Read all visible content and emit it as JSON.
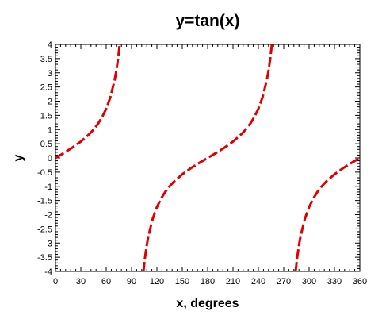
{
  "chart_data": {
    "type": "line",
    "title": "y=tan(x)",
    "xlabel": "x, degrees",
    "ylabel": "y",
    "xlim": [
      0,
      360
    ],
    "ylim": [
      -4,
      4
    ],
    "x_ticks": [
      0,
      30,
      60,
      90,
      120,
      150,
      180,
      210,
      240,
      270,
      300,
      330,
      360
    ],
    "x_tick_labels": [
      "0",
      "30",
      "60",
      "90",
      "120",
      "150",
      "180",
      "210",
      "240",
      "270",
      "300",
      "330",
      "360"
    ],
    "y_ticks": [
      4,
      3.5,
      3,
      2.5,
      2,
      1.5,
      1,
      0.5,
      0,
      -0.5,
      -1,
      -1.5,
      -2,
      -2.5,
      -3,
      -3.5,
      -4
    ],
    "y_tick_labels": [
      "4",
      "3.5",
      "3",
      "2.5",
      "2",
      "1.5",
      "1",
      "0.5",
      "0",
      "-0.5",
      "-1",
      "-1.5",
      "-2",
      "-2.5",
      "-3",
      "-3.5",
      "-4"
    ],
    "grid": false,
    "legend": false,
    "series": [
      {
        "color": "#e00000",
        "line_style": "dashed",
        "segments": [
          {
            "x": [
              0,
              10,
              20,
              30,
              40,
              45,
              50,
              55,
              60,
              65,
              70,
              72,
              74,
              75.96
            ],
            "y": [
              0,
              0.176,
              0.364,
              0.577,
              0.839,
              1.0,
              1.192,
              1.428,
              1.732,
              2.145,
              2.747,
              3.078,
              3.487,
              4.0
            ]
          },
          {
            "x": [
              104.04,
              106,
              108,
              110,
              115,
              120,
              125,
              130,
              135,
              140,
              150,
              160,
              170,
              180,
              190,
              200,
              210,
              220,
              225,
              230,
              235,
              240,
              245,
              250,
              252,
              254,
              255.96
            ],
            "y": [
              -4.0,
              -3.487,
              -3.078,
              -2.747,
              -2.145,
              -1.732,
              -1.428,
              -1.192,
              -1.0,
              -0.839,
              -0.577,
              -0.364,
              -0.176,
              0,
              0.176,
              0.364,
              0.577,
              0.839,
              1.0,
              1.192,
              1.428,
              1.732,
              2.145,
              2.747,
              3.078,
              3.487,
              4.0
            ]
          },
          {
            "x": [
              284.04,
              286,
              288,
              290,
              295,
              300,
              305,
              310,
              315,
              320,
              330,
              340,
              350,
              360
            ],
            "y": [
              -4.0,
              -3.487,
              -3.078,
              -2.747,
              -2.145,
              -1.732,
              -1.428,
              -1.192,
              -1.0,
              -0.839,
              -0.577,
              -0.364,
              -0.176,
              0
            ]
          }
        ]
      }
    ]
  }
}
